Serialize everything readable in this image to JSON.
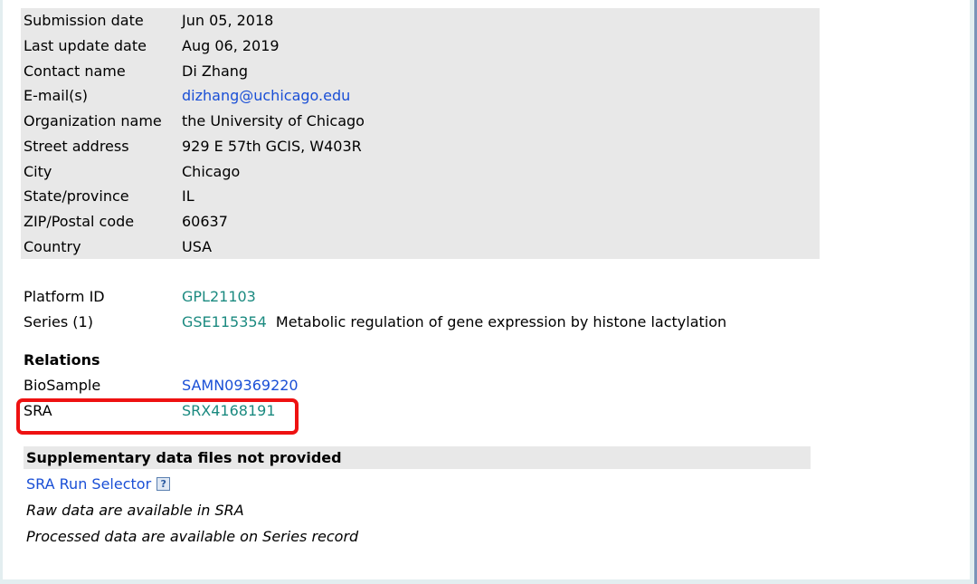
{
  "contact": [
    {
      "label": "Submission date",
      "value": "Jun 05, 2018"
    },
    {
      "label": "Last update date",
      "value": "Aug 06, 2019"
    },
    {
      "label": "Contact name",
      "value": "Di Zhang"
    },
    {
      "label": "E-mail(s)",
      "value": "dizhang@uchicago.edu"
    },
    {
      "label": "Organization name",
      "value": "the University of Chicago"
    },
    {
      "label": "Street address",
      "value": "929 E 57th GCIS, W403R"
    },
    {
      "label": "City",
      "value": "Chicago"
    },
    {
      "label": "State/province",
      "value": "IL"
    },
    {
      "label": "ZIP/Postal code",
      "value": "60637"
    },
    {
      "label": "Country",
      "value": "USA"
    }
  ],
  "platform": {
    "label": "Platform ID",
    "value": "GPL21103"
  },
  "series": {
    "label": "Series (1)",
    "value": "GSE115354",
    "title": "Metabolic regulation of gene expression by histone lactylation"
  },
  "relations": {
    "heading": "Relations",
    "biosample": {
      "label": "BioSample",
      "value": "SAMN09369220"
    },
    "sra": {
      "label": "SRA",
      "value": "SRX4168191"
    }
  },
  "supplementary": {
    "heading": "Supplementary data files not provided",
    "run_selector": "SRA Run Selector",
    "help_icon": "?",
    "raw_note": "Raw data are available in SRA",
    "processed_note": "Processed data are available on Series record"
  },
  "colors": {
    "link_blue": "#1a4fd6",
    "link_teal": "#1b8a80",
    "highlight": "#ee1111",
    "panel": "#e8e8e8"
  }
}
